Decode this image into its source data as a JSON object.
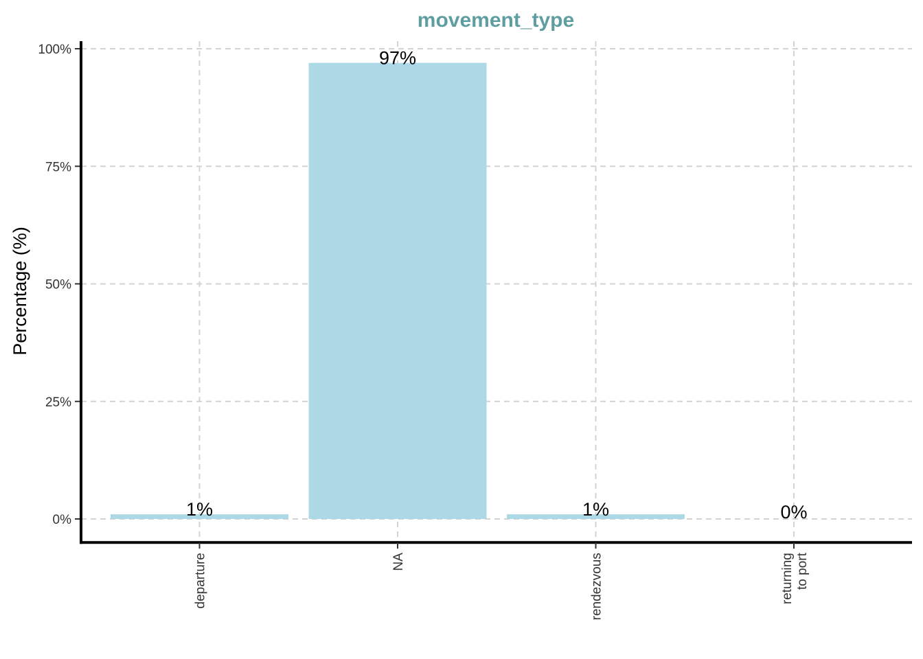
{
  "chart_data": {
    "type": "bar",
    "title": "movement_type",
    "xlabel": "",
    "ylabel": "Percentage (%)",
    "categories": [
      [
        "departure"
      ],
      [
        "NA"
      ],
      [
        "rendezvous"
      ],
      [
        "returning",
        "to port"
      ]
    ],
    "values": [
      1,
      97,
      1,
      0
    ],
    "value_labels": [
      "1%",
      "97%",
      "1%",
      "0%"
    ],
    "ylim": [
      -5,
      102
    ],
    "yticks": [
      0,
      25,
      50,
      75,
      100
    ],
    "ytick_labels": [
      "0%",
      "25%",
      "50%",
      "75%",
      "100%"
    ],
    "grid": true,
    "legend": "none"
  },
  "colors": {
    "bar": "#add8e6",
    "title": "#5f9ea0",
    "grid": "#d3d3d3",
    "axis": "#000000"
  }
}
